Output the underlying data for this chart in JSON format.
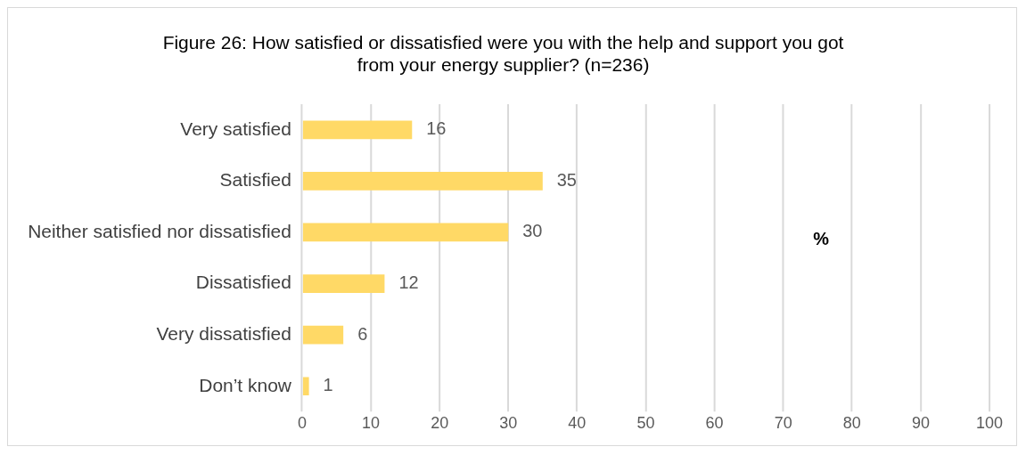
{
  "chart_data": {
    "type": "bar",
    "orientation": "horizontal",
    "title": "Figure 26: How satisfied or dissatisfied were you with the help and support you got\nfrom your energy supplier? (n=236)",
    "categories": [
      "Very satisfied",
      "Satisfied",
      "Neither satisfied nor dissatisfied",
      "Dissatisfied",
      "Very dissatisfied",
      "Don’t know"
    ],
    "values": [
      16,
      35,
      30,
      12,
      6,
      1
    ],
    "color": "#ffd966",
    "xlim": [
      0,
      100
    ],
    "xticks": [
      0,
      10,
      20,
      30,
      40,
      50,
      60,
      70,
      80,
      90,
      100
    ],
    "grid": "x",
    "data_labels": true,
    "legend": false,
    "annotations": [
      "%"
    ]
  }
}
